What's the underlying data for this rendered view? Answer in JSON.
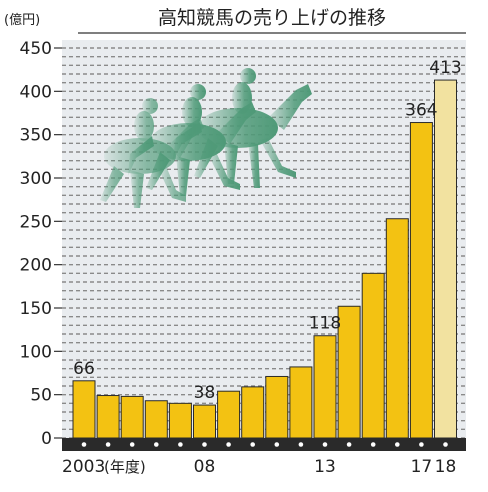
{
  "chart_data": {
    "type": "bar",
    "title": "高知競馬の売り上げの推移",
    "unit_label": "(億円)",
    "x_note": "(年度)",
    "categories": [
      "2003",
      "2004",
      "2005",
      "2006",
      "2007",
      "2008",
      "2009",
      "2010",
      "2011",
      "2012",
      "2013",
      "2014",
      "2015",
      "2016",
      "2017",
      "2018"
    ],
    "x_tick_labels": [
      "2003",
      "",
      "",
      "",
      "",
      "08",
      "",
      "",
      "",
      "",
      "13",
      "",
      "",
      "",
      "17",
      "18"
    ],
    "values": [
      66,
      49,
      48,
      43,
      40,
      38,
      54,
      59,
      71,
      82,
      118,
      152,
      190,
      253,
      364,
      413
    ],
    "data_labels": [
      "66",
      "",
      "",
      "",
      "",
      "38",
      "",
      "",
      "",
      "",
      "118",
      "",
      "",
      "",
      "364",
      "413"
    ],
    "highlight_last": true,
    "y_ticks": [
      0,
      50,
      100,
      150,
      200,
      250,
      300,
      350,
      400,
      450
    ],
    "ylim": [
      0,
      450
    ],
    "grid": true,
    "colors": {
      "bar": "#f3c212",
      "bar_edge": "#2a2a2a",
      "bar_last": "#f2e2a0",
      "grid": "#8a8a8a",
      "bg": "#e9ecef",
      "baseline": "#2a2a2a",
      "horse": "#4f9a78"
    },
    "decoration": "racing-horses-illustration"
  }
}
